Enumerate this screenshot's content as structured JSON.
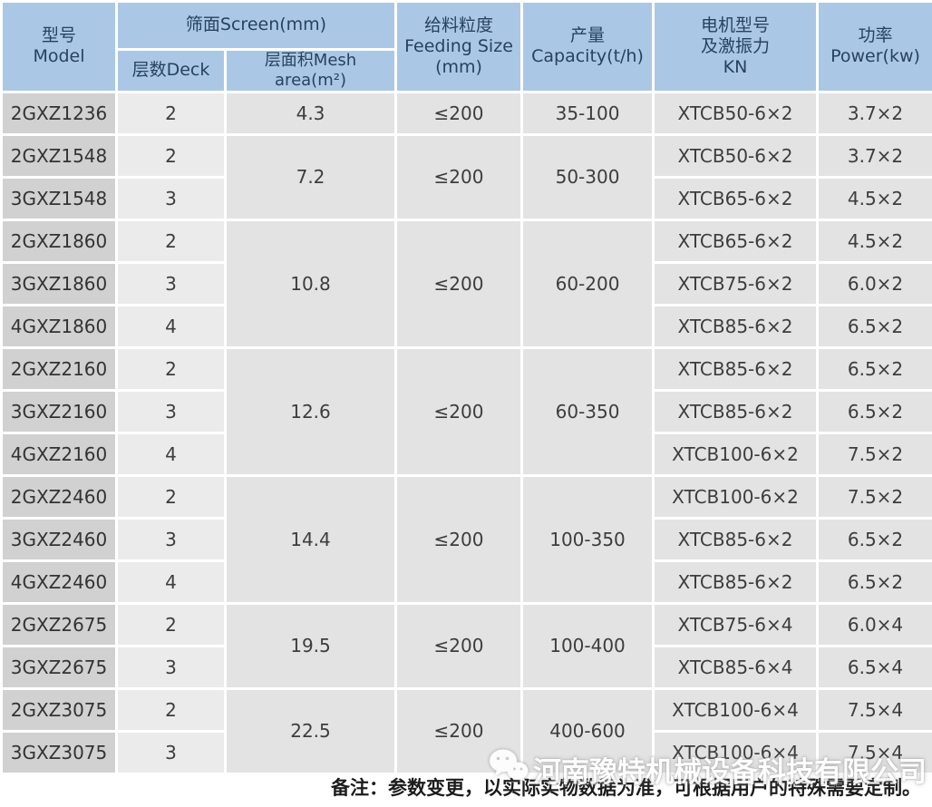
{
  "colors": {
    "header_bg": "#aac8e5",
    "header_text": "#26425f",
    "model_col_bg": "#d1d1d1",
    "deck_col_bg": "#ebebeb",
    "cell_bg": "#e3e3e3",
    "cell_text": "#3d3d3d",
    "divider": "#ffffff",
    "note_text": "#1c1c1c",
    "watermark_text": "#ffffff"
  },
  "header": {
    "model": "型号\nModel",
    "screen_group": "筛面Screen(mm)",
    "deck": "层数Deck",
    "mesh_area": "层面积Mesh area(m²)",
    "feeding": "给料粒度\nFeeding Size\n(mm)",
    "capacity": "产量\nCapacity(t/h)",
    "motor": "电机型号\n及激振力\nKN",
    "power": "功率\nPower(kw)"
  },
  "rows": [
    {
      "model": "2GXZ1236",
      "deck": "2",
      "mesh": "4.3",
      "mesh_span": 1,
      "feeding": "≤200",
      "feeding_span": 1,
      "capacity": "35-100",
      "capacity_span": 1,
      "motor": "XTCB50-6×2",
      "power": "3.7×2"
    },
    {
      "model": "2GXZ1548",
      "deck": "2",
      "mesh": "7.2",
      "mesh_span": 2,
      "feeding": "≤200",
      "feeding_span": 2,
      "capacity": "50-300",
      "capacity_span": 2,
      "motor": "XTCB50-6×2",
      "power": "3.7×2"
    },
    {
      "model": "3GXZ1548",
      "deck": "3",
      "motor": "XTCB65-6×2",
      "power": "4.5×2"
    },
    {
      "model": "2GXZ1860",
      "deck": "2",
      "mesh": "10.8",
      "mesh_span": 3,
      "feeding": "≤200",
      "feeding_span": 3,
      "capacity": "60-200",
      "capacity_span": 3,
      "motor": "XTCB65-6×2",
      "power": "4.5×2"
    },
    {
      "model": "3GXZ1860",
      "deck": "3",
      "motor": "XTCB75-6×2",
      "power": "6.0×2"
    },
    {
      "model": "4GXZ1860",
      "deck": "4",
      "motor": "XTCB85-6×2",
      "power": "6.5×2"
    },
    {
      "model": "2GXZ2160",
      "deck": "2",
      "mesh": "12.6",
      "mesh_span": 3,
      "feeding": "≤200",
      "feeding_span": 3,
      "capacity": "60-350",
      "capacity_span": 3,
      "motor": "XTCB85-6×2",
      "power": "6.5×2"
    },
    {
      "model": "3GXZ2160",
      "deck": "3",
      "motor": "XTCB85-6×2",
      "power": "6.5×2"
    },
    {
      "model": "4GXZ2160",
      "deck": "4",
      "motor": "XTCB100-6×2",
      "power": "7.5×2"
    },
    {
      "model": "2GXZ2460",
      "deck": "2",
      "mesh": "14.4",
      "mesh_span": 3,
      "feeding": "≤200",
      "feeding_span": 3,
      "capacity": "100-350",
      "capacity_span": 3,
      "motor": "XTCB100-6×2",
      "power": "7.5×2"
    },
    {
      "model": "3GXZ2460",
      "deck": "3",
      "motor": "XTCB85-6×2",
      "power": "6.5×2"
    },
    {
      "model": "4GXZ2460",
      "deck": "4",
      "motor": "XTCB85-6×2",
      "power": "6.5×2"
    },
    {
      "model": "2GXZ2675",
      "deck": "2",
      "mesh": "19.5",
      "mesh_span": 2,
      "feeding": "≤200",
      "feeding_span": 2,
      "capacity": "100-400",
      "capacity_span": 2,
      "motor": "XTCB75-6×4",
      "power": "6.0×4"
    },
    {
      "model": "3GXZ2675",
      "deck": "3",
      "motor": "XTCB85-6×4",
      "power": "6.5×4"
    },
    {
      "model": "2GXZ3075",
      "deck": "2",
      "mesh": "22.5",
      "mesh_span": 2,
      "feeding": "≤200",
      "feeding_span": 2,
      "capacity": "400-600",
      "capacity_span": 2,
      "motor": "XTCB100-6×4",
      "power": "7.5×4"
    },
    {
      "model": "3GXZ3075",
      "deck": "3",
      "motor": "XTCB100-6×4",
      "power": "7.5×4"
    }
  ],
  "footer": {
    "note": "备注：参数变更，以实际实物数据为准，可根据用户的特殊需要定制。"
  },
  "watermark": {
    "icon": "wechat-icon",
    "text": "河南豫特机械设备科技有限公司"
  }
}
